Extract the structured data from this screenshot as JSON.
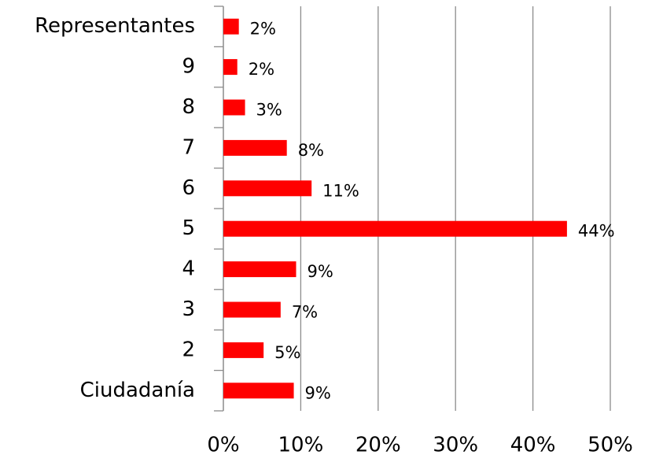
{
  "chart_data": {
    "type": "bar",
    "orientation": "horizontal",
    "categories": [
      "Ciudadanía",
      "2",
      "3",
      "4",
      "5",
      "6",
      "7",
      "8",
      "9",
      "Representantes"
    ],
    "values": [
      9.1,
      5.2,
      7.4,
      9.4,
      44.4,
      11.4,
      8.2,
      2.8,
      1.8,
      2.0
    ],
    "value_labels": [
      "9%",
      "5%",
      "7%",
      "9%",
      "44%",
      "11%",
      "8%",
      "3%",
      "2%",
      "2%"
    ],
    "color": "#ff0000",
    "xlim": [
      0,
      50
    ],
    "xticks": [
      {
        "value": 0,
        "label": "0%"
      },
      {
        "value": 10,
        "label": "10%"
      },
      {
        "value": 20,
        "label": "20%"
      },
      {
        "value": 30,
        "label": "30%"
      },
      {
        "value": 40,
        "label": "40%"
      },
      {
        "value": 50,
        "label": "50%"
      }
    ],
    "grid": true
  }
}
